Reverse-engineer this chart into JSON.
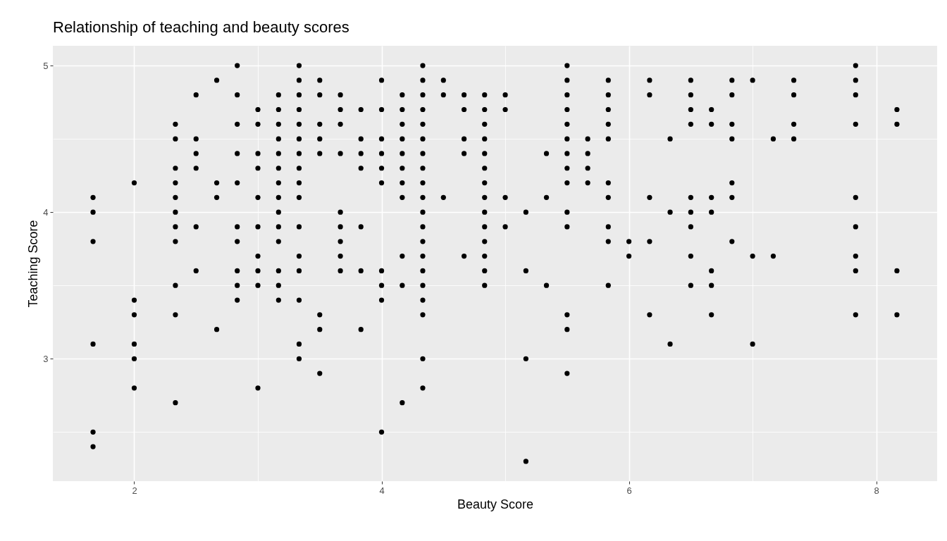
{
  "chart_data": {
    "type": "scatter",
    "title": "Relationship of teaching and beauty scores",
    "xlabel": "Beauty Score",
    "ylabel": "Teaching Score",
    "xlim": [
      1.342,
      8.492
    ],
    "ylim": [
      2.165,
      5.135
    ],
    "xticks": [
      2,
      {
        "value": 3,
        "label": null
      },
      4,
      {
        "value": 5,
        "label": null
      },
      6,
      {
        "value": 7,
        "label": null
      },
      8
    ],
    "yticks": [
      {
        "value": 2.5,
        "label": null
      },
      3,
      {
        "value": 3.5,
        "label": null
      },
      4,
      {
        "value": 4.5,
        "label": null
      },
      5
    ],
    "grid": true,
    "marker": "circle",
    "series": [
      {
        "color": "#000000",
        "x": [
          1.667,
          1.667,
          1.667,
          1.667,
          1.667,
          1.667,
          2,
          2,
          2,
          2,
          2,
          2,
          2.333,
          2.333,
          2.333,
          2.333,
          2.333,
          2.333,
          2.333,
          2.333,
          2.333,
          2.333,
          2.333,
          2.5,
          2.5,
          2.5,
          2.5,
          2.5,
          2.5,
          2.667,
          2.667,
          2.667,
          2.667,
          2.833,
          2.833,
          2.833,
          2.833,
          2.833,
          2.833,
          2.833,
          2.833,
          2.833,
          2.833,
          3,
          3,
          3,
          3,
          3,
          3,
          3,
          3,
          3,
          3,
          3.167,
          3.167,
          3.167,
          3.167,
          3.167,
          3.167,
          3.167,
          3.167,
          3.167,
          3.167,
          3.167,
          3.167,
          3.167,
          3.167,
          3.333,
          3.333,
          3.333,
          3.333,
          3.333,
          3.333,
          3.333,
          3.333,
          3.333,
          3.333,
          3.333,
          3.333,
          3.333,
          3.333,
          3.333,
          3.333,
          3.5,
          3.5,
          3.5,
          3.5,
          3.5,
          3.5,
          3.5,
          3.5,
          3.667,
          3.667,
          3.667,
          3.667,
          3.667,
          3.667,
          3.667,
          3.667,
          3.667,
          3.833,
          3.833,
          3.833,
          3.833,
          3.833,
          3.833,
          3.833,
          4,
          4,
          4,
          4,
          4,
          4,
          4,
          4,
          4,
          4,
          4.167,
          4.167,
          4.167,
          4.167,
          4.167,
          4.167,
          4.167,
          4.167,
          4.167,
          4.167,
          4.167,
          4.333,
          4.333,
          4.333,
          4.333,
          4.333,
          4.333,
          4.333,
          4.333,
          4.333,
          4.333,
          4.333,
          4.333,
          4.333,
          4.333,
          4.333,
          4.333,
          4.333,
          4.333,
          4.333,
          4.333,
          4.5,
          4.5,
          4.5,
          4.667,
          4.667,
          4.667,
          4.667,
          4.667,
          4.833,
          4.833,
          4.833,
          4.833,
          4.833,
          4.833,
          4.833,
          4.833,
          4.833,
          4.833,
          4.833,
          4.833,
          4.833,
          4.833,
          5,
          5,
          5,
          5,
          5.167,
          5.167,
          5.167,
          5.167,
          5.333,
          5.333,
          5.333,
          5.5,
          5.5,
          5.5,
          5.5,
          5.5,
          5.5,
          5.5,
          5.5,
          5.5,
          5.5,
          5.5,
          5.5,
          5.5,
          5.5,
          5.667,
          5.667,
          5.667,
          5.667,
          5.833,
          5.833,
          5.833,
          5.833,
          5.833,
          5.833,
          5.833,
          5.833,
          5.833,
          5.833,
          6,
          6,
          6.167,
          6.167,
          6.167,
          6.167,
          6.167,
          6.333,
          6.333,
          6.333,
          6.5,
          6.5,
          6.5,
          6.5,
          6.5,
          6.5,
          6.5,
          6.5,
          6.5,
          6.667,
          6.667,
          6.667,
          6.667,
          6.667,
          6.667,
          6.667,
          6.833,
          6.833,
          6.833,
          6.833,
          6.833,
          6.833,
          6.833,
          7,
          7,
          7,
          7.167,
          7.167,
          7.333,
          7.333,
          7.333,
          7.333,
          7.833,
          7.833,
          7.833,
          7.833,
          7.833,
          7.833,
          7.833,
          7.833,
          7.833,
          8.167,
          8.167,
          8.167,
          8.167
        ],
        "values": [
          4.1,
          4.0,
          3.8,
          3.1,
          2.5,
          2.4,
          4.2,
          3.4,
          3.3,
          3.1,
          3.0,
          2.8,
          4.6,
          4.5,
          4.3,
          4.2,
          4.1,
          4.0,
          3.9,
          3.8,
          3.5,
          3.3,
          2.7,
          4.8,
          4.5,
          4.4,
          4.3,
          3.9,
          3.6,
          4.9,
          4.2,
          4.1,
          3.2,
          5.0,
          4.8,
          4.6,
          4.4,
          4.2,
          3.9,
          3.8,
          3.6,
          3.5,
          3.4,
          4.7,
          4.6,
          4.4,
          4.3,
          4.1,
          3.9,
          3.7,
          3.6,
          3.5,
          2.8,
          4.8,
          4.7,
          4.6,
          4.5,
          4.4,
          4.3,
          4.2,
          4.1,
          4.0,
          3.9,
          3.8,
          3.6,
          3.5,
          3.4,
          5.0,
          4.9,
          4.8,
          4.7,
          4.6,
          4.5,
          4.4,
          4.3,
          4.2,
          4.1,
          3.9,
          3.7,
          3.6,
          3.4,
          3.1,
          3.0,
          4.9,
          4.8,
          4.6,
          4.5,
          4.4,
          3.3,
          3.2,
          2.9,
          4.8,
          4.7,
          4.6,
          4.4,
          4.0,
          3.9,
          3.8,
          3.7,
          3.6,
          4.7,
          4.5,
          4.4,
          4.3,
          3.9,
          3.6,
          3.2,
          4.9,
          4.7,
          4.5,
          4.4,
          4.3,
          4.2,
          3.6,
          3.5,
          3.4,
          2.5,
          4.8,
          4.7,
          4.6,
          4.5,
          4.4,
          4.3,
          4.2,
          4.1,
          3.7,
          3.5,
          2.7,
          5.0,
          4.9,
          4.8,
          4.7,
          4.6,
          4.5,
          4.4,
          4.3,
          4.2,
          4.1,
          4.0,
          3.9,
          3.8,
          3.7,
          3.6,
          3.5,
          3.4,
          3.3,
          3.0,
          2.8,
          4.9,
          4.8,
          4.1,
          4.8,
          4.7,
          4.5,
          4.4,
          3.7,
          4.8,
          4.7,
          4.6,
          4.5,
          4.4,
          4.3,
          4.2,
          4.1,
          4.0,
          3.9,
          3.8,
          3.7,
          3.6,
          3.5,
          4.8,
          4.7,
          4.1,
          3.9,
          4.0,
          3.6,
          3.0,
          2.3,
          4.4,
          4.1,
          3.5,
          5.0,
          4.9,
          4.8,
          4.7,
          4.6,
          4.5,
          4.4,
          4.3,
          4.2,
          4.0,
          3.9,
          3.3,
          3.2,
          2.9,
          4.5,
          4.4,
          4.3,
          4.2,
          4.9,
          4.8,
          4.7,
          4.6,
          4.5,
          4.2,
          4.1,
          3.9,
          3.8,
          3.5,
          3.8,
          3.7,
          4.9,
          4.8,
          4.1,
          3.8,
          3.3,
          4.5,
          4.0,
          3.1,
          4.9,
          4.8,
          4.7,
          4.6,
          4.1,
          4.0,
          3.9,
          3.7,
          3.5,
          4.7,
          4.6,
          4.1,
          4.0,
          3.6,
          3.5,
          3.3,
          4.9,
          4.8,
          4.6,
          4.5,
          4.2,
          4.1,
          3.8,
          4.9,
          3.7,
          3.1,
          4.5,
          3.7,
          4.9,
          4.8,
          4.6,
          4.5,
          5.0,
          4.9,
          4.8,
          4.6,
          4.1,
          3.9,
          3.7,
          3.6,
          3.3,
          4.7,
          4.6,
          3.6,
          3.3
        ]
      }
    ]
  }
}
